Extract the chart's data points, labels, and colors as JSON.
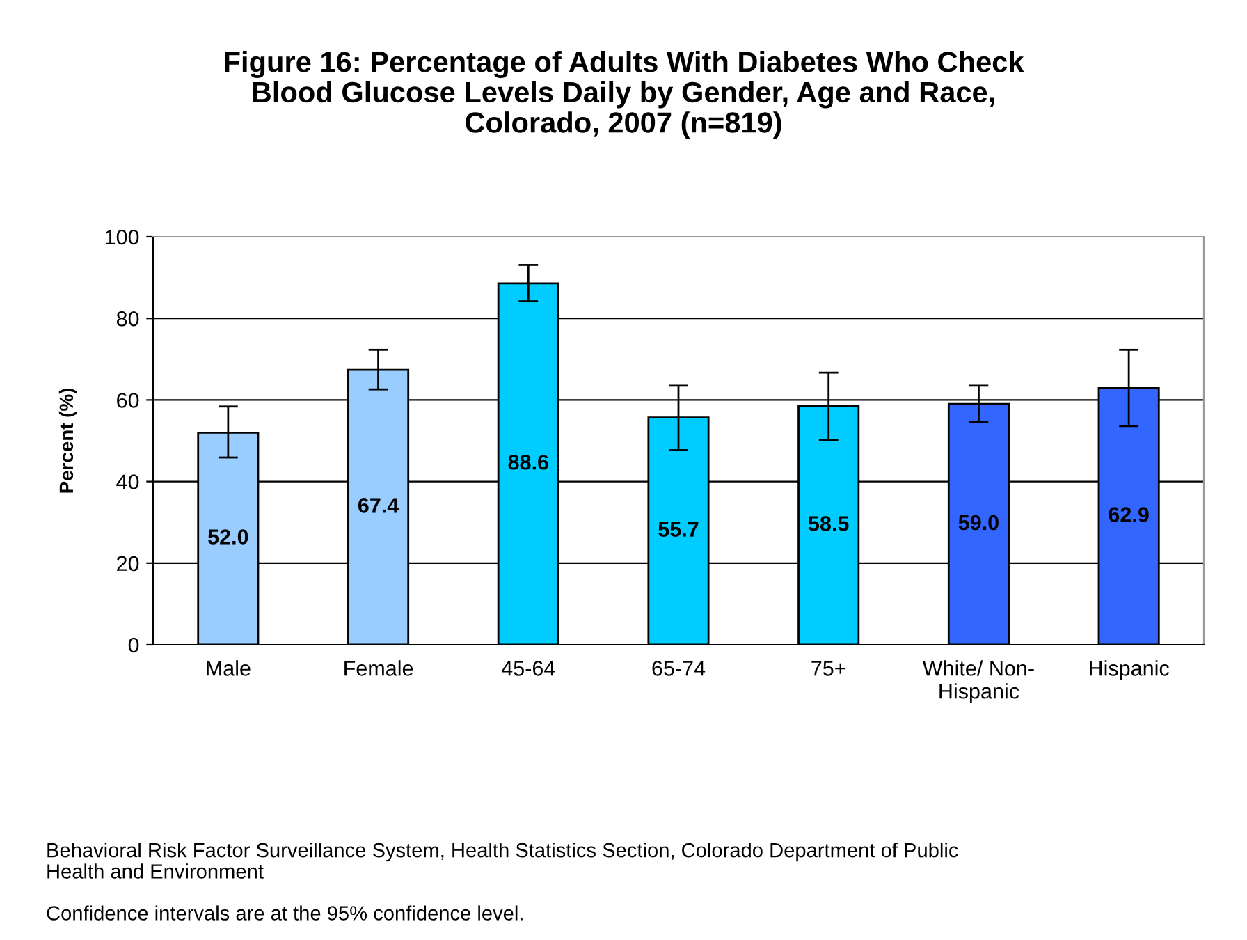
{
  "chart_data": {
    "type": "bar",
    "title": "Figure 16: Percentage of Adults With Diabetes Who Check\nBlood Glucose Levels Daily by Gender, Age and Race,\nColorado, 2007 (n=819)",
    "ylabel": "Percent (%)",
    "categories": [
      "Male",
      "Female",
      "45-64",
      "65-74",
      "75+",
      "White/ Non-\nHispanic",
      "Hispanic"
    ],
    "values": [
      52.0,
      67.4,
      88.6,
      55.7,
      58.5,
      59.0,
      62.9
    ],
    "colors": [
      "#99ccff",
      "#99ccff",
      "#00ccff",
      "#00ccff",
      "#00ccff",
      "#3366ff",
      "#3366ff"
    ],
    "errors": [
      [
        45.9,
        58.4
      ],
      [
        62.6,
        72.3
      ],
      [
        84.2,
        93.1
      ],
      [
        47.7,
        63.5
      ],
      [
        50.1,
        66.7
      ],
      [
        54.6,
        63.5
      ],
      [
        53.6,
        72.3
      ]
    ],
    "value_labels": [
      "52.0",
      "67.4",
      "88.6",
      "55.7",
      "58.5",
      "59.0",
      "62.9"
    ],
    "ylim": [
      0,
      100
    ],
    "yticks": [
      0,
      20,
      40,
      60,
      80,
      100
    ],
    "grid": "y",
    "annotations": [
      "Behavioral Risk Factor Surveillance System, Health Statistics Section, Colorado Department of Public\nHealth and Environment",
      "Confidence intervals are at the 95% confidence level."
    ]
  }
}
